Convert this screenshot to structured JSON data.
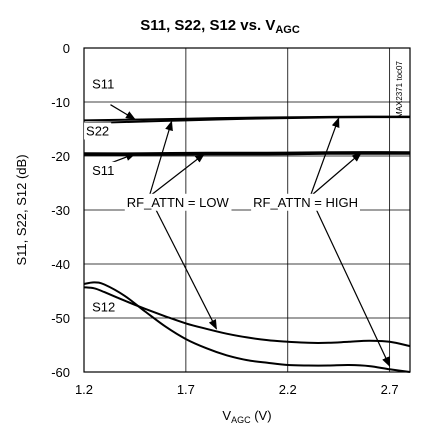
{
  "chart_data": {
    "type": "line",
    "title": "S11, S22, S12 vs. V",
    "title_sub": "AGC",
    "xlabel_main": "V",
    "xlabel_sub": "AGC",
    "xlabel_unit": " (V)",
    "ylabel": "S11, S22, S12 (dB)",
    "xlim": [
      1.2,
      2.8
    ],
    "ylim": [
      -60,
      0
    ],
    "x_ticks": [
      1.2,
      1.7,
      2.2,
      2.7
    ],
    "x_tick_labels": [
      "1.2",
      "1.7",
      "2.2",
      "2.7"
    ],
    "y_ticks": [
      0,
      -10,
      -20,
      -30,
      -40,
      -50,
      -60
    ],
    "y_tick_labels": [
      "0",
      "-10",
      "-20",
      "-30",
      "-40",
      "-50",
      "-60"
    ],
    "grid": true,
    "code_label": "MAX2371 toc07",
    "series": [
      {
        "x": [
          1.2,
          1.4,
          1.7,
          2.0,
          2.3,
          2.6,
          2.8
        ],
        "y": [
          -13.4,
          -13.3,
          -13.1,
          -12.9,
          -12.8,
          -12.7,
          -12.7
        ]
      },
      {
        "x": [
          1.2,
          1.4,
          1.7,
          2.0,
          2.3,
          2.6,
          2.8
        ],
        "y": [
          -13.9,
          -13.7,
          -13.4,
          -13.1,
          -12.9,
          -12.8,
          -12.8
        ]
      },
      {
        "x": [
          1.2,
          1.5,
          1.8,
          2.1,
          2.4,
          2.8
        ],
        "y": [
          -19.5,
          -19.5,
          -19.4,
          -19.4,
          -19.3,
          -19.3
        ]
      },
      {
        "x": [
          1.2,
          1.5,
          1.8,
          2.1,
          2.4,
          2.8
        ],
        "y": [
          -19.8,
          -19.8,
          -19.7,
          -19.7,
          -19.6,
          -19.6
        ]
      },
      {
        "x": [
          1.2,
          1.25,
          1.3,
          1.4,
          1.5,
          1.6,
          1.7,
          1.8,
          1.9,
          2.0,
          2.1,
          2.2,
          2.3,
          2.4,
          2.5,
          2.6,
          2.7,
          2.8
        ],
        "y": [
          -44.3,
          -44.5,
          -45.2,
          -46.8,
          -48.3,
          -49.7,
          -51.0,
          -52.0,
          -52.9,
          -53.6,
          -54.1,
          -54.4,
          -54.6,
          -54.6,
          -54.4,
          -54.2,
          -54.4,
          -55.2
        ]
      },
      {
        "x": [
          1.2,
          1.25,
          1.3,
          1.4,
          1.5,
          1.6,
          1.7,
          1.8,
          1.9,
          2.0,
          2.1,
          2.2,
          2.3,
          2.4,
          2.5,
          2.6,
          2.7,
          2.8
        ],
        "y": [
          -43.7,
          -43.4,
          -43.8,
          -45.9,
          -48.8,
          -51.6,
          -53.9,
          -55.6,
          -56.9,
          -57.8,
          -58.3,
          -58.7,
          -58.8,
          -58.8,
          -58.7,
          -58.9,
          -59.5,
          -60.0
        ]
      }
    ],
    "annotations": [
      {
        "text": "S11",
        "x": 1.24,
        "y": -7.5
      },
      {
        "text": "S22",
        "x": 1.21,
        "y": -16.2
      },
      {
        "text": "S11",
        "x": 1.24,
        "y": -23.5
      },
      {
        "text": "S12",
        "x": 1.24,
        "y": -48.8
      },
      {
        "text": "RF_ATTN = LOW",
        "x": 1.41,
        "y": -29.4
      },
      {
        "text": "RF_ATTN = HIGH",
        "x": 2.03,
        "y": -29.4
      }
    ],
    "arrows": [
      {
        "from": [
          1.33,
          -10.5
        ],
        "to": [
          1.45,
          -13.2
        ]
      },
      {
        "from": [
          1.33,
          -21.3
        ],
        "to": [
          1.45,
          -19.6
        ]
      },
      {
        "from": [
          1.52,
          -27.5
        ],
        "to": [
          1.63,
          -13.6
        ]
      },
      {
        "from": [
          1.52,
          -27.5
        ],
        "to": [
          1.79,
          -19.6
        ]
      },
      {
        "from": [
          1.52,
          -27.5
        ],
        "to": [
          1.85,
          -52.0
        ]
      },
      {
        "from": [
          2.31,
          -27.5
        ],
        "to": [
          2.45,
          -13.0
        ]
      },
      {
        "from": [
          2.31,
          -27.5
        ],
        "to": [
          2.56,
          -19.4
        ]
      },
      {
        "from": [
          2.31,
          -27.5
        ],
        "to": [
          2.7,
          -58.9
        ]
      }
    ]
  }
}
